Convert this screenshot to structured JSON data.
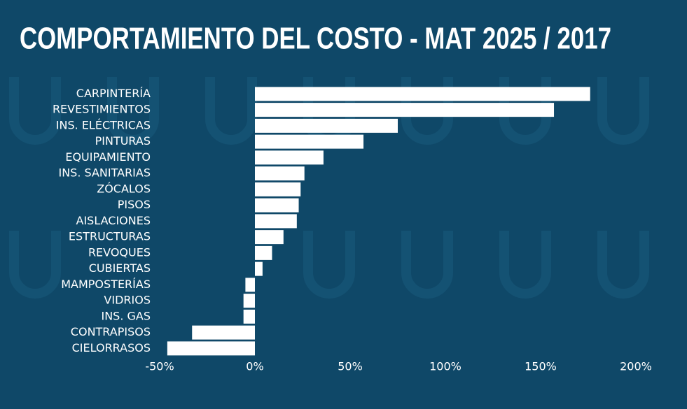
{
  "chart_data": {
    "type": "bar",
    "orientation": "horizontal",
    "title": "COMPORTAMIENTO DEL COSTO - MAT 2025 / 2017",
    "categories": [
      "CARPINTERÍA",
      "REVESTIMIENTOS",
      "INS. ELÉCTRICAS",
      "PINTURAS",
      "EQUIPAMIENTO",
      "INS. SANITARIAS",
      "ZÓCALOS",
      "PISOS",
      "AISLACIONES",
      "ESTRUCTURAS",
      "REVOQUES",
      "CUBIERTAS",
      "MAMPOSTERÍAS",
      "VIDRIOS",
      "INS. GAS",
      "CONTRAPISOS",
      "CIELORRASOS"
    ],
    "values": [
      176,
      157,
      75,
      57,
      36,
      26,
      24,
      23,
      22,
      15,
      9,
      4,
      -5,
      -6,
      -6,
      -33,
      -46
    ],
    "color": "#ffffff",
    "xlim": [
      -50,
      200
    ],
    "xticks": [
      {
        "value": -50,
        "label": "-50%"
      },
      {
        "value": 0,
        "label": "0%"
      },
      {
        "value": 50,
        "label": "50%"
      },
      {
        "value": 100,
        "label": "100%"
      },
      {
        "value": 150,
        "label": "150%"
      },
      {
        "value": 200,
        "label": "200%"
      }
    ],
    "grid": false
  }
}
